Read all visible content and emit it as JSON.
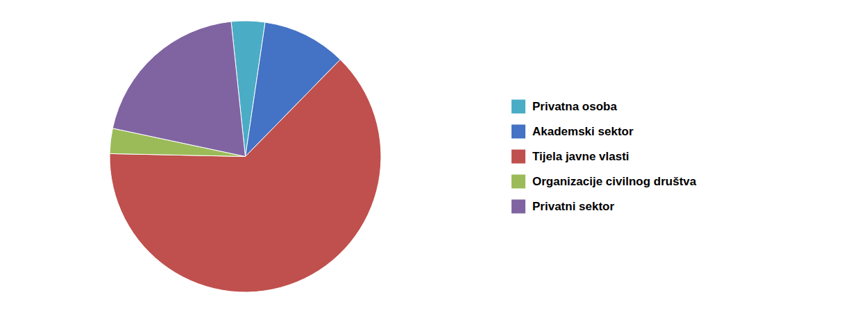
{
  "chart_data": {
    "type": "pie",
    "categories": [
      "Privatna osoba",
      "Akademski sektor",
      "Tijela javne vlasti",
      "Organizacije civilnog društva",
      "Privatni sektor"
    ],
    "values": [
      4,
      10,
      63,
      3,
      20
    ],
    "colors": [
      "#4BACC6",
      "#4472C4",
      "#C0504D",
      "#9BBB59",
      "#8064A2"
    ],
    "legend": "right"
  }
}
